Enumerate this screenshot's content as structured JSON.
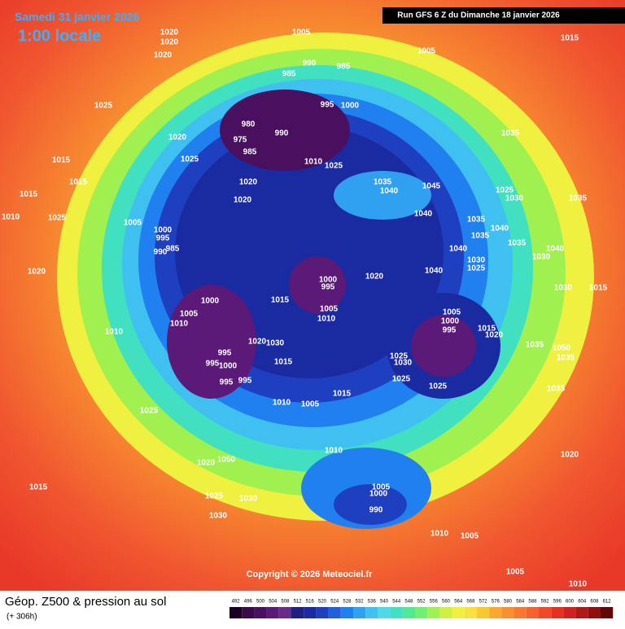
{
  "header": {
    "date": "Samedi 31 janvier 2026",
    "time": "1:00 locale",
    "run": "Run GFS 6 Z du Dimanche 18 janvier 2026"
  },
  "footer": {
    "title": "Géop. Z500 & pression au sol",
    "lead": "(+ 306h)",
    "copyright": "Copyright © 2026 Meteociel.fr"
  },
  "legend": {
    "levels": [
      492,
      496,
      500,
      504,
      508,
      512,
      516,
      520,
      524,
      528,
      532,
      536,
      540,
      544,
      548,
      552,
      556,
      560,
      564,
      568,
      572,
      576,
      580,
      584,
      588,
      592,
      596,
      600,
      604,
      608,
      612
    ],
    "colors": [
      "#1a0020",
      "#3a0a4a",
      "#4a1060",
      "#5c1a78",
      "#6a2a8a",
      "#202080",
      "#1a2aa0",
      "#1e40c0",
      "#2060d8",
      "#2080f0",
      "#30a0f0",
      "#40c0f0",
      "#50d8e8",
      "#40e0c0",
      "#50e890",
      "#70f070",
      "#a0f050",
      "#d0f040",
      "#f0f040",
      "#f8e040",
      "#f8c830",
      "#f8a830",
      "#f89030",
      "#f87830",
      "#f86030",
      "#f04828",
      "#e83020",
      "#d02020",
      "#b01818",
      "#901010",
      "#600808"
    ]
  },
  "pressure_labels": [
    "1005",
    "1020",
    "1020",
    "1020",
    "990",
    "985",
    "985",
    "1005",
    "1015",
    "1025",
    "995",
    "1000",
    "980",
    "990",
    "975",
    "985",
    "1020",
    "1025",
    "1010",
    "1025",
    "1035",
    "1035",
    "1040",
    "1045",
    "1025",
    "1030",
    "1035",
    "1020",
    "1020",
    "1015",
    "1015",
    "1015",
    "1010",
    "1025",
    "1005",
    "1040",
    "1035",
    "1040",
    "1035",
    "1040",
    "1035",
    "1030",
    "1040",
    "1000",
    "995",
    "985",
    "990",
    "1030",
    "1025",
    "1040",
    "1020",
    "1000",
    "995",
    "1020",
    "1030",
    "1015",
    "1000",
    "1015",
    "1005",
    "1010",
    "1005",
    "1010",
    "1005",
    "1000",
    "995",
    "1015",
    "1020",
    "1010",
    "1020",
    "1030",
    "995",
    "995",
    "1000",
    "1015",
    "1025",
    "1030",
    "1035",
    "1050",
    "1035",
    "1025",
    "995",
    "995",
    "1025",
    "1035",
    "1010",
    "1005",
    "1015",
    "1025",
    "1010",
    "1020",
    "1020",
    "1050",
    "1015",
    "1025",
    "1030",
    "1005",
    "1000",
    "990",
    "1030",
    "1010",
    "1005",
    "1005",
    "1010"
  ]
}
